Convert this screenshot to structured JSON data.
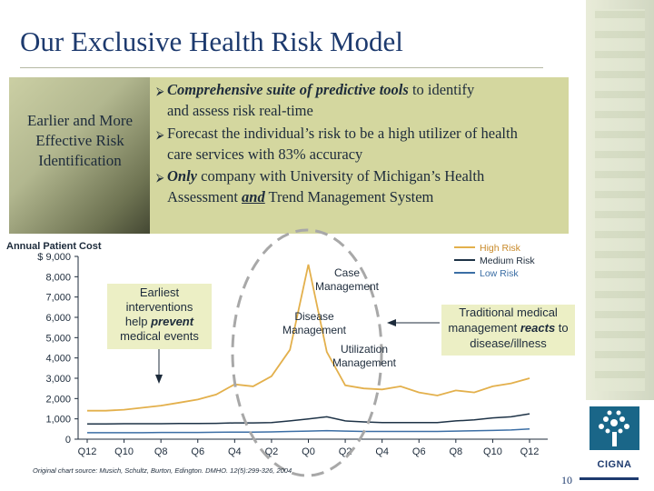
{
  "slide": {
    "title": "Our Exclusive Health Risk Model",
    "page_number": "10",
    "source_note": "Original chart source: Musich, Schultz, Burton, Edington. DMHO. 12(5):299-326, 2004"
  },
  "left_panel": {
    "text": "Earlier and More Effective Risk Identification"
  },
  "bullets": [
    {
      "lead": "Comprehensive suite of predictive tools",
      "rest1": " to identify",
      "rest2": "and assess risk real-time"
    },
    {
      "line1": "Forecast the individual’s risk to be a high utilizer of health",
      "line2": "care services with 83% accuracy"
    },
    {
      "lead": "Only",
      "rest1": " company with University of Michigan’s Health",
      "pre2": "Assessment ",
      "em2": "and",
      "post2": " Trend Management System"
    }
  ],
  "callouts": {
    "earlier_line1": "Earliest",
    "earlier_line2": "interventions",
    "earlier_line3_pre": "help ",
    "earlier_line3_em": "prevent",
    "earlier_line4": "medical events",
    "traditional_line1": "Traditional medical",
    "traditional_line2_pre": "management ",
    "traditional_line2_em": "reacts",
    "traditional_line2_post": " to",
    "traditional_line3": "disease/illness",
    "case_line1": "Case",
    "case_line2": "Management",
    "disease_line1": "Disease",
    "disease_line2": "Management",
    "util_line1": "Utilization",
    "util_line2": "Management"
  },
  "logo": {
    "text": "CIGNA"
  },
  "chart_data": {
    "type": "line",
    "title": "Annual Patient Cost",
    "ylabel": "$",
    "categories": [
      "Q12",
      "Q11",
      "Q10",
      "Q9",
      "Q8",
      "Q7",
      "Q6",
      "Q5",
      "Q4",
      "Q3",
      "Q2",
      "Q1",
      "Q0",
      "Q1",
      "Q2",
      "Q3",
      "Q4",
      "Q5",
      "Q6",
      "Q7",
      "Q8",
      "Q9",
      "Q10",
      "Q11",
      "Q12"
    ],
    "x_tick_labels": [
      "Q12",
      "Q10",
      "Q8",
      "Q6",
      "Q4",
      "Q2",
      "Q0",
      "Q2",
      "Q4",
      "Q6",
      "Q8",
      "Q10",
      "Q12"
    ],
    "y_ticks": [
      "$ 9,000",
      "8,000",
      "7,000",
      "6,000",
      "5,000",
      "4,000",
      "3,000",
      "2,000",
      "1,000",
      "0"
    ],
    "ylim": [
      0,
      9000
    ],
    "series": [
      {
        "name": "High Risk",
        "color": "#e3b04c",
        "values": [
          1400,
          1400,
          1450,
          1550,
          1650,
          1800,
          1950,
          2200,
          2700,
          2600,
          3100,
          4400,
          8600,
          4300,
          2650,
          2500,
          2450,
          2600,
          2300,
          2150,
          2400,
          2300,
          2600,
          2750,
          3000
        ]
      },
      {
        "name": "Medium Risk",
        "color": "#1e3347",
        "values": [
          750,
          750,
          760,
          760,
          760,
          770,
          770,
          780,
          800,
          800,
          820,
          900,
          1000,
          1100,
          900,
          850,
          820,
          820,
          820,
          820,
          900,
          950,
          1050,
          1100,
          1250
        ]
      },
      {
        "name": "Low Risk",
        "color": "#3b6ea5",
        "values": [
          320,
          320,
          320,
          320,
          330,
          330,
          330,
          340,
          350,
          350,
          360,
          380,
          400,
          420,
          400,
          380,
          380,
          380,
          380,
          380,
          400,
          410,
          430,
          450,
          500
        ]
      }
    ],
    "legend": [
      "High Risk",
      "Medium Risk",
      "Low Risk"
    ],
    "legend_position": "top-right"
  }
}
